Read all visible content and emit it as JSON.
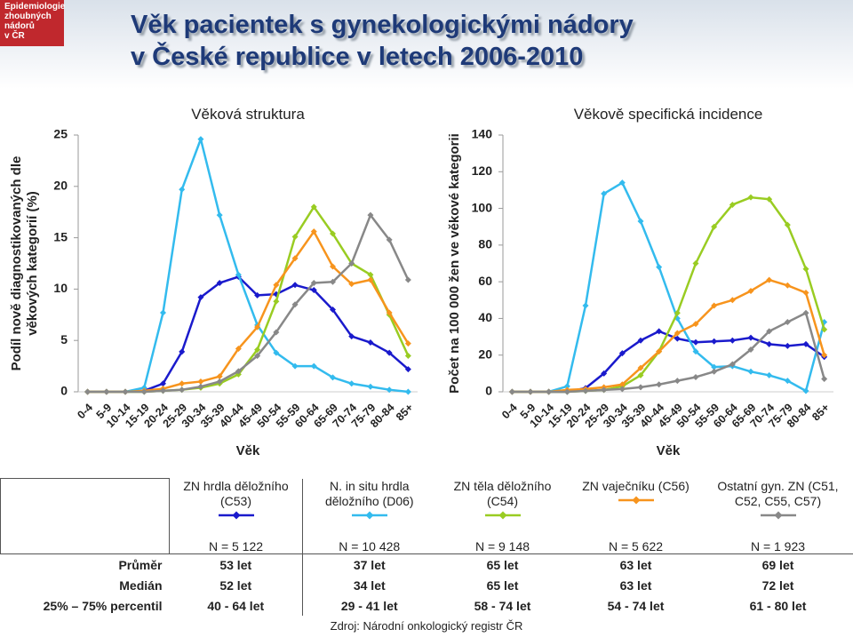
{
  "logo": [
    "Epidemiologie",
    "zhoubných",
    "nádorů",
    "v ČR"
  ],
  "header": {
    "title": [
      "Věk pacientek s gynekologickými nádory",
      "v České republice v letech 2006-2010"
    ]
  },
  "chart_data": [
    {
      "type": "line",
      "title": "Věková struktura",
      "ylabel": [
        "Podíl nově diagnostikovaných dle",
        "věkových kategorií (%)"
      ],
      "xlabel": "Věk",
      "categories": [
        "0-4",
        "5-9",
        "10-14",
        "15-19",
        "20-24",
        "25-29",
        "30-34",
        "35-39",
        "40-44",
        "45-49",
        "50-54",
        "55-59",
        "60-64",
        "65-69",
        "70-74",
        "75-79",
        "80-84",
        "85+"
      ],
      "ylim": [
        0,
        25
      ],
      "yticks": [
        0,
        5,
        10,
        15,
        20,
        25
      ],
      "series": [
        {
          "name": "ZN hrdla děložního (C53)",
          "color": "#1a1acc",
          "values": [
            0,
            0,
            0,
            0.1,
            0.8,
            3.9,
            9.2,
            10.6,
            11.2,
            9.4,
            9.5,
            10.4,
            9.9,
            8.0,
            5.4,
            4.8,
            3.8,
            2.2
          ]
        },
        {
          "name": "N. in situ hrdla děložního (D06)",
          "color": "#33bbee",
          "values": [
            0,
            0,
            0,
            0.4,
            7.7,
            19.7,
            24.6,
            17.2,
            11.4,
            6.5,
            3.8,
            2.5,
            2.5,
            1.4,
            0.8,
            0.5,
            0.2,
            0
          ]
        },
        {
          "name": "ZN těla děložního (C54)",
          "color": "#99cc22",
          "values": [
            0,
            0,
            0,
            0,
            0.1,
            0.2,
            0.4,
            0.8,
            1.7,
            4.1,
            8.8,
            15.1,
            18.0,
            15.4,
            12.5,
            11.4,
            7.5,
            3.5
          ]
        },
        {
          "name": "ZN vaječníku (C56)",
          "color": "#f7941d",
          "values": [
            0,
            0,
            0,
            0.1,
            0.3,
            0.8,
            1.0,
            1.5,
            4.2,
            6.3,
            10.4,
            13.0,
            15.6,
            12.2,
            10.5,
            10.9,
            7.7,
            4.7
          ]
        },
        {
          "name": "Ostatní gyn. ZN (C51, C52, C55, C57)",
          "color": "#888888",
          "values": [
            0,
            0,
            0,
            0,
            0.1,
            0.2,
            0.5,
            1.0,
            2.0,
            3.5,
            5.8,
            8.5,
            10.6,
            10.7,
            12.5,
            17.2,
            14.8,
            10.9
          ]
        }
      ]
    },
    {
      "type": "line",
      "title": "Věkově specifická incidence",
      "ylabel": [
        "Počet na 100 000 žen ve věkové kategorii"
      ],
      "xlabel": "Věk",
      "categories": [
        "0-4",
        "5-9",
        "10-14",
        "15-19",
        "20-24",
        "25-29",
        "30-34",
        "35-39",
        "40-44",
        "45-49",
        "50-54",
        "55-59",
        "60-64",
        "65-69",
        "70-74",
        "75-79",
        "80-84",
        "85+"
      ],
      "ylim": [
        0,
        140
      ],
      "yticks": [
        0,
        20,
        40,
        60,
        80,
        100,
        120,
        140
      ],
      "series": [
        {
          "color": "#1a1acc",
          "values": [
            0,
            0,
            0,
            0,
            2,
            10,
            21,
            28,
            33,
            29,
            27,
            27.5,
            28,
            29.5,
            26,
            25,
            26,
            19
          ]
        },
        {
          "color": "#33bbee",
          "values": [
            0,
            0,
            0,
            3,
            47,
            108,
            114,
            93,
            68,
            40,
            22,
            13.5,
            14,
            11,
            9,
            6,
            0.5,
            38
          ]
        },
        {
          "color": "#99cc22",
          "values": [
            0,
            0,
            0,
            0,
            0.5,
            1,
            3,
            9,
            22,
            43,
            70,
            90,
            102,
            106,
            105,
            91,
            67,
            34
          ]
        },
        {
          "color": "#f7941d",
          "values": [
            0,
            0,
            0,
            1,
            1.5,
            2.5,
            4,
            13,
            22,
            32,
            37,
            47,
            50,
            55,
            61,
            58,
            54,
            20
          ]
        },
        {
          "color": "#888888",
          "values": [
            0,
            0,
            0,
            0,
            0.5,
            1,
            1.5,
            2.5,
            4,
            6,
            8,
            11,
            15,
            23,
            33,
            38,
            43,
            7
          ]
        }
      ]
    }
  ],
  "table": {
    "rows": [
      {
        "cells": [
          "N = 5 122",
          "N = 10 428",
          "N = 9 148",
          "N = 5 622",
          "N = 1 923"
        ]
      },
      {
        "label": "Průměr",
        "cells": [
          "53 let",
          "37 let",
          "65 let",
          "63 let",
          "69 let"
        ]
      },
      {
        "label": "Medián",
        "cells": [
          "52 let",
          "34 let",
          "65 let",
          "63 let",
          "72 let"
        ]
      },
      {
        "label": "25% – 75% percentil",
        "cells": [
          "40 - 64 let",
          "29 - 41 let",
          "58 - 74 let",
          "54 - 74 let",
          "61 - 80 let"
        ]
      }
    ]
  },
  "source": "Zdroj: Národní onkologický registr ČR"
}
